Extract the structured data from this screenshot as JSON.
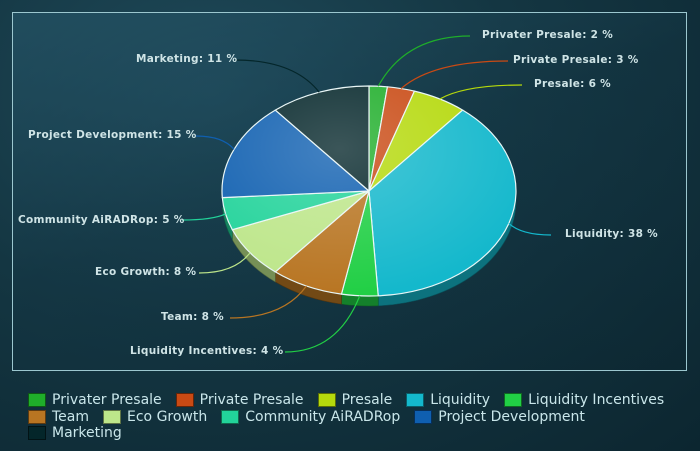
{
  "chart_data": {
    "type": "pie",
    "title": "",
    "slices": [
      {
        "name": "Privater Presale",
        "value": 2,
        "label": "Privater Presale: 2 %",
        "color": "#1fae2a"
      },
      {
        "name": "Private Presale",
        "value": 3,
        "label": "Private Presale: 3 %",
        "color": "#c94a14"
      },
      {
        "name": "Presale",
        "value": 6,
        "label": "Presale: 6 %",
        "color": "#b5d90c"
      },
      {
        "name": "Liquidity",
        "value": 38,
        "label": "Liquidity: 38 %",
        "color": "#14b8cc"
      },
      {
        "name": "Liquidity Incentives",
        "value": 4,
        "label": "Liquidity Incentives: 4 %",
        "color": "#21cf45"
      },
      {
        "name": "Team",
        "value": 8,
        "label": "Team: 8 %",
        "color": "#b87522"
      },
      {
        "name": "Eco Growth",
        "value": 8,
        "label": "Eco Growth: 8 %",
        "color": "#bde68a"
      },
      {
        "name": "Community AiRADRop",
        "value": 5,
        "label": "Community AiRADRop: 5 %",
        "color": "#22d39a"
      },
      {
        "name": "Project Development",
        "value": 15,
        "label": "Project Development: 15 %",
        "color": "#0f5fb0"
      },
      {
        "name": "Marketing",
        "value": 11,
        "label": "Marketing: 11 %",
        "color": "#04262a"
      }
    ],
    "legend_position": "bottom"
  }
}
